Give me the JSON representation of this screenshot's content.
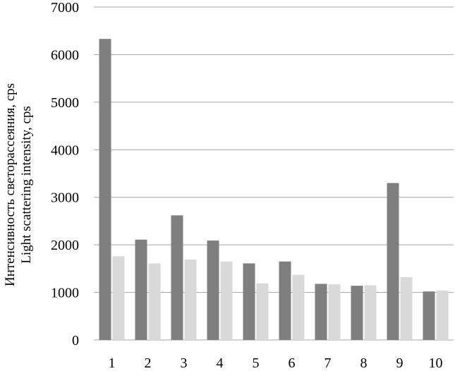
{
  "chart_data": {
    "type": "bar",
    "categories": [
      "1",
      "2",
      "3",
      "4",
      "5",
      "6",
      "7",
      "8",
      "9",
      "10"
    ],
    "series": [
      {
        "values": [
          6330,
          2110,
          2620,
          2090,
          1610,
          1650,
          1180,
          1140,
          3300,
          1020
        ],
        "color": "#7f7f7f"
      },
      {
        "values": [
          1760,
          1610,
          1690,
          1650,
          1190,
          1370,
          1170,
          1150,
          1320,
          1040
        ],
        "color": "#d9d9d9"
      }
    ],
    "ylabel_lines": [
      "Интенсивность светорассеяния, cps",
      "Light scattering intensity, cps"
    ],
    "ylim": [
      0,
      7000
    ],
    "yticks": [
      0,
      1000,
      2000,
      3000,
      4000,
      5000,
      6000,
      7000
    ],
    "grid": true,
    "gridline_color": "#a6a6a6"
  }
}
